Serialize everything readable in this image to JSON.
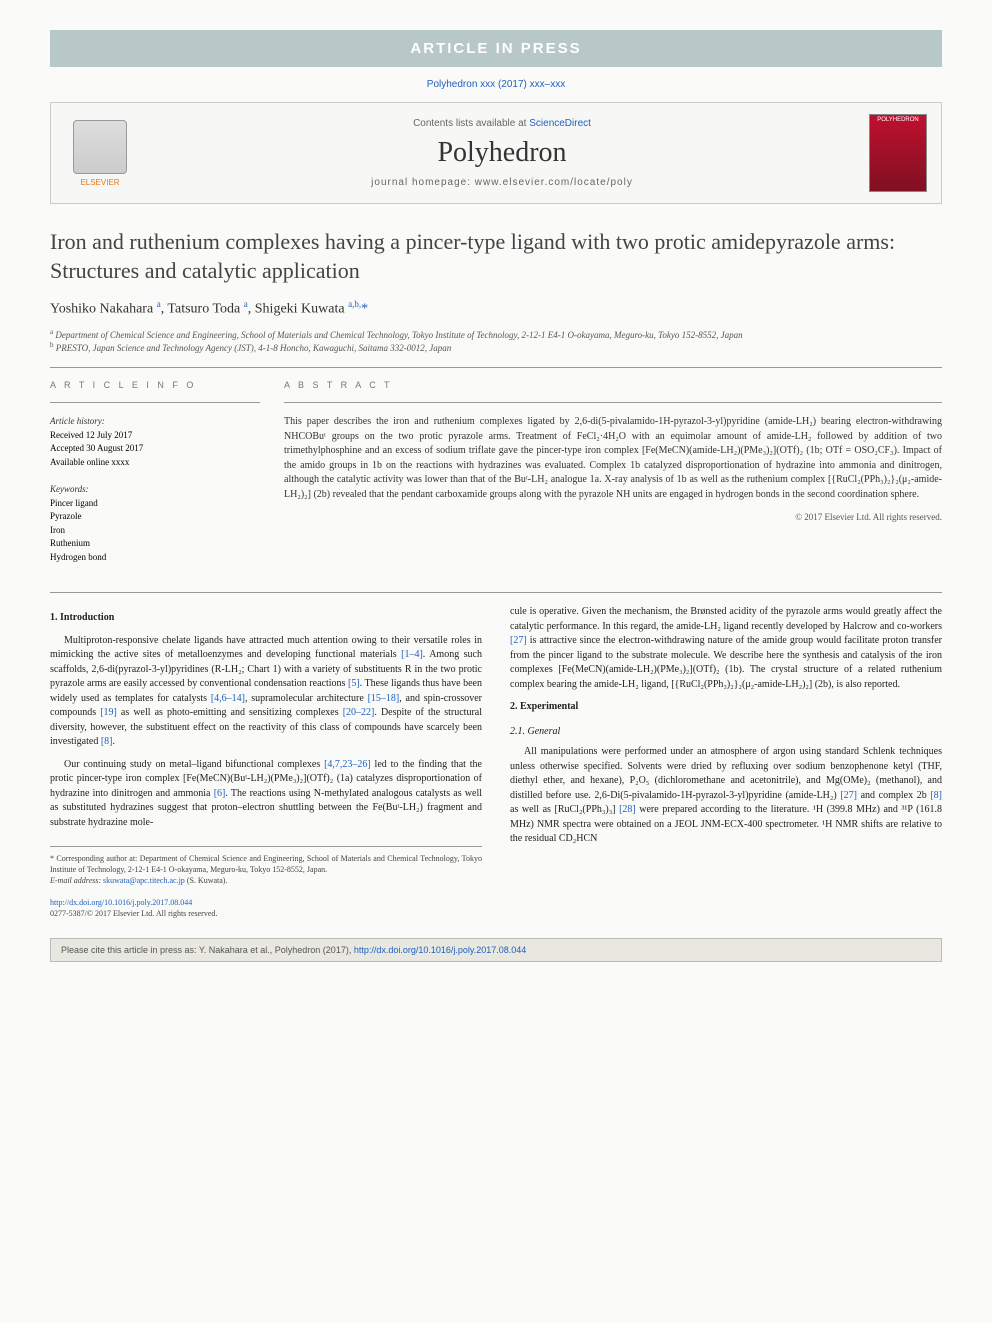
{
  "banner": "ARTICLE IN PRESS",
  "citation_line": "Polyhedron xxx (2017) xxx–xxx",
  "header": {
    "contents_prefix": "Contents lists available at ",
    "contents_link": "ScienceDirect",
    "journal": "Polyhedron",
    "homepage_prefix": "journal homepage: ",
    "homepage": "www.elsevier.com/locate/poly",
    "elsevier_label": "ELSEVIER",
    "cover_label": "POLYHEDRON"
  },
  "title": "Iron and ruthenium complexes having a pincer-type ligand with two protic amidepyrazole arms: Structures and catalytic application",
  "authors_html": "Yoshiko Nakahara <span class='sup'>a</span>, Tatsuro Toda <span class='sup'>a</span>, Shigeki Kuwata <span class='sup'>a,b,</span><span class='star'>*</span>",
  "affiliations": {
    "a": "Department of Chemical Science and Engineering, School of Materials and Chemical Technology, Tokyo Institute of Technology, 2-12-1 E4-1 O-okayama, Meguro-ku, Tokyo 152-8552, Japan",
    "b": "PRESTO, Japan Science and Technology Agency (JST), 4-1-8 Honcho, Kawaguchi, Saitama 332-0012, Japan"
  },
  "info": {
    "heading": "A R T I C L E   I N F O",
    "history_label": "Article history:",
    "received": "Received 12 July 2017",
    "accepted": "Accepted 30 August 2017",
    "available": "Available online xxxx",
    "keywords_label": "Keywords:",
    "keywords": [
      "Pincer ligand",
      "Pyrazole",
      "Iron",
      "Ruthenium",
      "Hydrogen bond"
    ]
  },
  "abstract": {
    "heading": "A B S T R A C T",
    "text": "This paper describes the iron and ruthenium complexes ligated by 2,6-di(5-pivalamido-1H-pyrazol-3-yl)pyridine (amide-LH₂) bearing electron-withdrawing NHCOBuᵗ groups on the two protic pyrazole arms. Treatment of FeCl₂·4H₂O with an equimolar amount of amide-LH₂ followed by addition of two trimethylphosphine and an excess of sodium triflate gave the pincer-type iron complex [Fe(MeCN)(amide-LH₂)(PMe₃)₂](OTf)₂ (1b; OTf = OSO₂CF₃). Impact of the amido groups in 1b on the reactions with hydrazines was evaluated. Complex 1b catalyzed disproportionation of hydrazine into ammonia and dinitrogen, although the catalytic activity was lower than that of the Buᵗ-LH₂ analogue 1a. X-ray analysis of 1b as well as the ruthenium complex [{RuCl₂(PPh₃)₂}₂(μ₂-amide-LH₂)₂] (2b) revealed that the pendant carboxamide groups along with the pyrazole NH units are engaged in hydrogen bonds in the second coordination sphere.",
    "copyright": "© 2017 Elsevier Ltd. All rights reserved."
  },
  "sections": {
    "intro_heading": "1. Introduction",
    "intro_p1": "Multiproton-responsive chelate ligands have attracted much attention owing to their versatile roles in mimicking the active sites of metalloenzymes and developing functional materials [1–4]. Among such scaffolds, 2,6-di(pyrazol-3-yl)pyridines (R-LH₂; Chart 1) with a variety of substituents R in the two protic pyrazole arms are easily accessed by conventional condensation reactions [5]. These ligands thus have been widely used as templates for catalysts [4,6–14], supramolecular architecture [15–18], and spin-crossover compounds [19] as well as photo-emitting and sensitizing complexes [20–22]. Despite of the structural diversity, however, the substituent effect on the reactivity of this class of compounds have scarcely been investigated [8].",
    "intro_p2": "Our continuing study on metal–ligand bifunctional complexes [4,7,23–26] led to the finding that the protic pincer-type iron complex [Fe(MeCN)(Buᵗ-LH₂)(PMe₃)₂](OTf)₂ (1a) catalyzes disproportionation of hydrazine into dinitrogen and ammonia [6]. The reactions using N-methylated analogous catalysts as well as substituted hydrazines suggest that proton–electron shuttling between the Fe(Buᵗ-LH₂) fragment and substrate hydrazine mole-",
    "col2_p1": "cule is operative. Given the mechanism, the Brønsted acidity of the pyrazole arms would greatly affect the catalytic performance. In this regard, the amide-LH₂ ligand recently developed by Halcrow and co-workers [27] is attractive since the electron-withdrawing nature of the amide group would facilitate proton transfer from the pincer ligand to the substrate molecule. We describe here the synthesis and catalysis of the iron complexes [Fe(MeCN)(amide-LH₂)(PMe₃)₂](OTf)₂ (1b). The crystal structure of a related ruthenium complex bearing the amide-LH₂ ligand, [{RuCl₂(PPh₃)₂}₂(μ₂-amide-LH₂)₂] (2b), is also reported.",
    "exp_heading": "2. Experimental",
    "exp_sub": "2.1. General",
    "exp_p1": "All manipulations were performed under an atmosphere of argon using standard Schlenk techniques unless otherwise specified. Solvents were dried by refluxing over sodium benzophenone ketyl (THF, diethyl ether, and hexane), P₂O₅ (dichloromethane and acetonitrile), and Mg(OMe)₂ (methanol), and distilled before use. 2,6-Di(5-pivalamido-1H-pyrazol-3-yl)pyridine (amide-LH₂) [27] and complex 2b [8] as well as [RuCl₂(PPh₃)₃] [28] were prepared according to the literature. ¹H (399.8 MHz) and ³¹P (161.8 MHz) NMR spectra were obtained on a JEOL JNM-ECX-400 spectrometer. ¹H NMR shifts are relative to the residual CD₂HCN"
  },
  "footnote": {
    "corr": "* Corresponding author at: Department of Chemical Science and Engineering, School of Materials and Chemical Technology, Tokyo Institute of Technology, 2-12-1 E4-1 O-okayama, Meguro-ku, Tokyo 152-8552, Japan.",
    "email_label": "E-mail address: ",
    "email": "skuwata@apc.titech.ac.jp",
    "email_suffix": " (S. Kuwata)."
  },
  "doi": {
    "url": "http://dx.doi.org/10.1016/j.poly.2017.08.044",
    "issn": "0277-5387/© 2017 Elsevier Ltd. All rights reserved."
  },
  "cite_footer": {
    "prefix": "Please cite this article in press as: Y. Nakahara et al., Polyhedron (2017), ",
    "link": "http://dx.doi.org/10.1016/j.poly.2017.08.044"
  },
  "colors": {
    "banner_bg": "#b8c8c8",
    "link": "#2060c0",
    "elsevier_orange": "#e67817",
    "cover_red": "#c01030"
  }
}
